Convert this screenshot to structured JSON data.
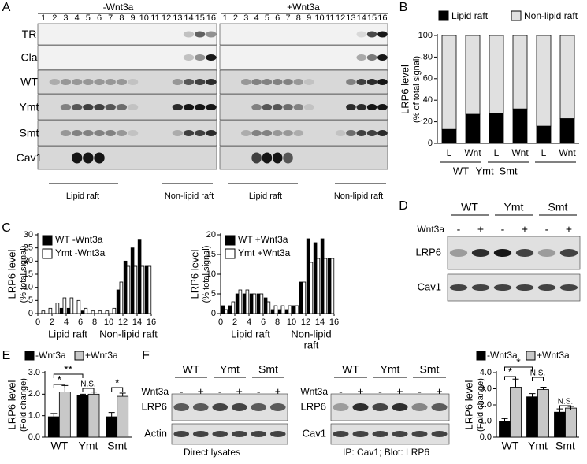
{
  "panel_labels": [
    "A",
    "B",
    "C",
    "D",
    "E",
    "F"
  ],
  "blot_A": {
    "conditions": [
      "-Wnt3a",
      "+Wnt3a"
    ],
    "lanes": [
      "1",
      "2",
      "3",
      "4",
      "5",
      "6",
      "7",
      "8",
      "9",
      "10",
      "11",
      "12",
      "13",
      "14",
      "15",
      "16"
    ],
    "rows": [
      "TR",
      "Cla",
      "WT",
      "Ymt",
      "Smt",
      "Cav1"
    ],
    "regions": [
      "Lipid raft",
      "Non-lipid raft"
    ]
  },
  "blot_D": {
    "groups": [
      "WT",
      "Ymt",
      "Smt"
    ],
    "treatment": "Wnt3a",
    "signs": [
      "-",
      "+",
      "-",
      "+",
      "-",
      "+"
    ],
    "rows": [
      "LRP6",
      "Cav1"
    ]
  },
  "blot_F_left": {
    "groups": [
      "WT",
      "Ymt",
      "Smt"
    ],
    "treatment": "Wnt3a",
    "signs": [
      "-",
      "+",
      "-",
      "+",
      "-",
      "+"
    ],
    "rows": [
      "LRP6",
      "Actin"
    ],
    "caption": "Direct lysates"
  },
  "blot_F_right": {
    "groups": [
      "WT",
      "Ymt",
      "Smt"
    ],
    "treatment": "Wnt3a",
    "signs": [
      "-",
      "+",
      "-",
      "+",
      "-",
      "+"
    ],
    "rows": [
      "LRP6",
      "Cav1"
    ],
    "caption": "IP: Cav1; Blot: LRP6"
  },
  "chart_data": [
    {
      "type": "bar",
      "stacked": true,
      "y_label": [
        "LRP6 level",
        "(% of total signal)"
      ],
      "categories": [
        "L",
        "Wnt",
        "L",
        "Wnt",
        "L",
        "Wnt"
      ],
      "groups": [
        "WT",
        "Ymt",
        "Smt"
      ],
      "series": [
        {
          "name": "Lipid raft",
          "color": "#000000",
          "values": [
            13,
            27,
            28,
            32,
            16,
            23
          ]
        },
        {
          "name": "Non-lipid raft",
          "color": "#e0e0e0",
          "values": [
            87,
            73,
            72,
            68,
            84,
            77
          ]
        }
      ],
      "ylim": [
        0,
        100
      ],
      "yticks": [
        0,
        20,
        40,
        60,
        80,
        100
      ]
    },
    {
      "type": "bar",
      "y_label": [
        "LRP6 level",
        "(% total signal)"
      ],
      "x_labels": [
        "Lipid raft",
        "Non-lipid raft"
      ],
      "x": [
        1,
        2,
        3,
        4,
        5,
        6,
        7,
        8,
        9,
        10,
        11,
        12,
        13,
        14,
        15,
        16
      ],
      "series": [
        {
          "name": "WT  -Wnt3a",
          "color": "#000000",
          "values": [
            0,
            0,
            0,
            2,
            2,
            0,
            1,
            0,
            0,
            0,
            0,
            9,
            20,
            25,
            28,
            18
          ]
        },
        {
          "name": "Ymt -Wnt3a",
          "color": "#ffffff",
          "values": [
            1,
            2,
            4,
            6,
            6,
            5,
            2,
            1,
            1,
            1,
            2,
            12,
            18,
            18,
            18,
            18
          ]
        }
      ],
      "xlim": [
        0,
        16
      ],
      "xticks": [
        0,
        2,
        4,
        6,
        8,
        10,
        12,
        14,
        16
      ],
      "ylim": [
        0,
        30
      ],
      "yticks": [
        0,
        5,
        10,
        15,
        20,
        25,
        30
      ]
    },
    {
      "type": "bar",
      "y_label": [
        "LRP6 level",
        "(% total signal)"
      ],
      "x_labels": [
        "Lipid raft",
        "Non-lipid",
        "raft"
      ],
      "x": [
        1,
        2,
        3,
        4,
        5,
        6,
        7,
        8,
        9,
        10,
        11,
        12,
        13,
        14,
        15,
        16
      ],
      "series": [
        {
          "name": "WT  +Wnt3a",
          "color": "#000000",
          "values": [
            2,
            2,
            5,
            5,
            5,
            5,
            4,
            1,
            1,
            1,
            2,
            8,
            19,
            18,
            19,
            14
          ]
        },
        {
          "name": "Ymt +Wnt3a",
          "color": "#ffffff",
          "values": [
            1,
            3,
            6,
            6,
            5,
            5,
            3,
            2,
            2,
            2,
            2,
            8,
            13,
            14,
            14,
            14
          ]
        }
      ],
      "xlim": [
        0,
        16
      ],
      "xticks": [
        0,
        2,
        4,
        6,
        8,
        10,
        12,
        14,
        16
      ],
      "ylim": [
        0,
        20
      ],
      "yticks": [
        0,
        5,
        10,
        15,
        20
      ]
    },
    {
      "type": "bar",
      "y_label": [
        "LRP6 level",
        "(Fold change)"
      ],
      "categories": [
        "WT",
        "Ymt",
        "Smt"
      ],
      "series": [
        {
          "name": "-Wnt3a",
          "color": "#000000",
          "values": [
            0.95,
            1.95,
            0.95
          ],
          "errors": [
            0.15,
            0.05,
            0.2
          ]
        },
        {
          "name": "+Wnt3a",
          "color": "#c8c8c8",
          "values": [
            2.1,
            2.0,
            1.9
          ],
          "errors": [
            0.3,
            0.1,
            0.15
          ]
        }
      ],
      "ylim": [
        0,
        3
      ],
      "yticks": [
        {
          "value": 0,
          "label": "0.0"
        },
        {
          "value": 1,
          "label": "1.0"
        },
        {
          "value": 2,
          "label": "2.0"
        },
        {
          "value": 3,
          "label": "3.0"
        }
      ],
      "annotations": [
        "*",
        "**",
        "N.S.",
        "*"
      ]
    },
    {
      "type": "bar",
      "y_label": [
        "LRP6 level",
        "(Fold change)"
      ],
      "categories": [
        "WT",
        "Ymt",
        "Smt"
      ],
      "series": [
        {
          "name": "-Wnt3a",
          "color": "#000000",
          "values": [
            1.0,
            2.5,
            1.55
          ],
          "errors": [
            0.15,
            0.2,
            0.2
          ]
        },
        {
          "name": "+Wnt3a",
          "color": "#c8c8c8",
          "values": [
            3.1,
            2.95,
            1.8
          ],
          "errors": [
            0.5,
            0.15,
            0.1
          ]
        }
      ],
      "ylim": [
        0,
        4
      ],
      "yticks": [
        {
          "value": 0,
          "label": "0.0"
        },
        {
          "value": 1,
          "label": "1.0"
        },
        {
          "value": 2,
          "label": "2.0"
        },
        {
          "value": 3,
          "label": "3.0"
        },
        {
          "value": 4,
          "label": "4.0"
        }
      ],
      "annotations": [
        "*",
        "*",
        "N.S.",
        "N.S."
      ]
    }
  ]
}
